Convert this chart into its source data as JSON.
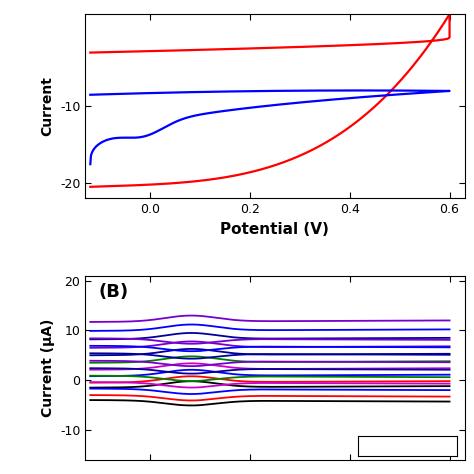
{
  "panel_A": {
    "xlim": [
      -0.13,
      0.63
    ],
    "ylim": [
      -22,
      2
    ],
    "xticks": [
      0.0,
      0.2,
      0.4,
      0.6
    ],
    "xtick_labels": [
      "0.0",
      "0.2",
      "0.4",
      "0.6"
    ],
    "yticks": [
      -20,
      -10
    ],
    "xlabel": "Potential (V)",
    "ylabel": "Current",
    "red_color": "#ff0000",
    "blue_color": "#0000ff",
    "top_clip": true
  },
  "panel_B": {
    "xlim": [
      -0.13,
      0.63
    ],
    "ylim": [
      -16,
      21
    ],
    "xticks": [
      0.0,
      0.2,
      0.4,
      0.6
    ],
    "yticks": [
      -10,
      0,
      10,
      20
    ],
    "ylabel": "Current (μA)",
    "label": "(B)",
    "n_cycles": 10,
    "cycle_colors": [
      "#000000",
      "#ff0000",
      "#0000ff",
      "#cc00cc",
      "#008000",
      "#000099",
      "#7700cc",
      "#000099",
      "#0000ff",
      "#7700cc"
    ],
    "fwd_offsets": [
      -1.5,
      -0.5,
      0.8,
      2.1,
      3.5,
      5.0,
      6.5,
      8.2,
      9.9,
      11.7
    ],
    "rev_offsets": [
      -4.0,
      -3.0,
      -1.7,
      -0.4,
      0.9,
      2.4,
      3.9,
      5.4,
      6.9,
      8.4
    ]
  }
}
